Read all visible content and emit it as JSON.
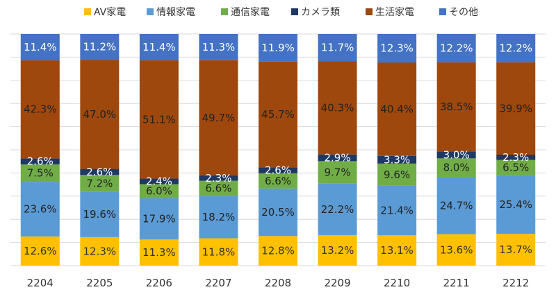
{
  "chart_data": {
    "type": "bar",
    "stacked": true,
    "percent": true,
    "grid": true,
    "legend_position": "top",
    "categories": [
      "2204",
      "2205",
      "2206",
      "2207",
      "2208",
      "2209",
      "2210",
      "2211",
      "2212"
    ],
    "series": [
      {
        "name": "AV家電",
        "color": "#ffc000",
        "values": [
          12.6,
          12.3,
          11.3,
          11.8,
          12.8,
          13.2,
          13.1,
          13.6,
          13.7
        ],
        "labels": [
          "12.6%",
          "12.3%",
          "11.3%",
          "11.8%",
          "12.8%",
          "13.2%",
          "13.1%",
          "13.6%",
          "13.7%"
        ]
      },
      {
        "name": "情報家電",
        "color": "#5b9bd5",
        "values": [
          23.6,
          19.6,
          17.9,
          18.2,
          20.5,
          22.2,
          21.4,
          24.7,
          25.4
        ],
        "labels": [
          "23.6%",
          "19.6%",
          "17.9%",
          "18.2%",
          "20.5%",
          "22.2%",
          "21.4%",
          "24.7%",
          "25.4%"
        ]
      },
      {
        "name": "通信家電",
        "color": "#70ad47",
        "values": [
          7.5,
          7.2,
          6.0,
          6.6,
          6.6,
          9.7,
          9.6,
          8.0,
          6.5
        ],
        "labels": [
          "7.5%",
          "7.2%",
          "6.0%",
          "6.6%",
          "6.6%",
          "9.7%",
          "9.6%",
          "8.0%",
          "6.5%"
        ]
      },
      {
        "name": "カメラ類",
        "color": "#1f3864",
        "values": [
          2.6,
          2.6,
          2.4,
          2.3,
          2.6,
          2.9,
          3.3,
          3.0,
          2.3
        ],
        "labels": [
          "2.6%",
          "2.6%",
          "2.4%",
          "2.3%",
          "2.6%",
          "2.9%",
          "3.3%",
          "3.0%",
          "2.3%"
        ]
      },
      {
        "name": "生活家電",
        "color": "#9e480e",
        "values": [
          42.3,
          47.0,
          51.1,
          49.7,
          45.7,
          40.3,
          40.4,
          38.5,
          39.9
        ],
        "labels": [
          "42.3%",
          "47.0%",
          "51.1%",
          "49.7%",
          "45.7%",
          "40.3%",
          "40.4%",
          "38.5%",
          "39.9%"
        ]
      },
      {
        "name": "その他",
        "color": "#4472c4",
        "values": [
          11.4,
          11.2,
          11.4,
          11.3,
          11.9,
          11.7,
          12.3,
          12.2,
          12.2
        ],
        "labels": [
          "11.4%",
          "11.2%",
          "11.4%",
          "11.3%",
          "11.9%",
          "11.7%",
          "12.3%",
          "12.2%",
          "12.2%"
        ]
      }
    ],
    "label_colors": {
      "AV家電": "#333333",
      "情報家電": "#222222",
      "通信家電": "#222222",
      "カメラ類": "#ffffff",
      "生活家電": "#222222",
      "その他": "#ffffff"
    },
    "gridline_color": "#d9d9d9"
  }
}
